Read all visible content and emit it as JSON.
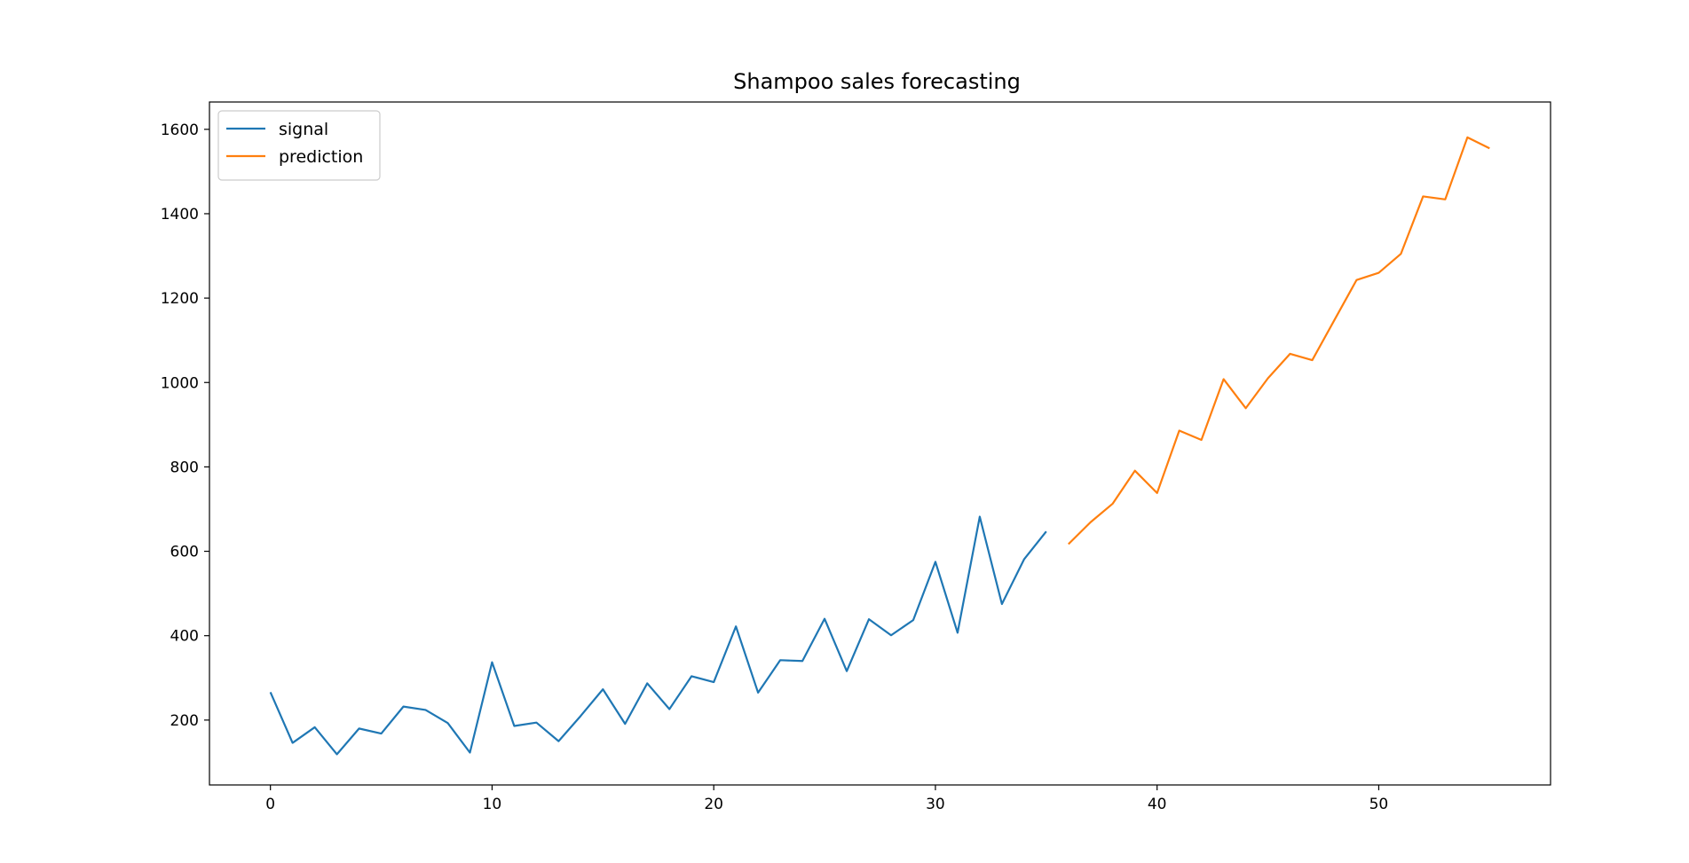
{
  "chart_data": {
    "type": "line",
    "title": "Shampoo sales forecasting",
    "xlabel": "",
    "ylabel": "",
    "xlim": [
      -2.75,
      57.75
    ],
    "ylim": [
      46.25,
      1664.75
    ],
    "xticks": [
      0,
      10,
      20,
      30,
      40,
      50
    ],
    "yticks": [
      200,
      400,
      600,
      800,
      1000,
      1200,
      1400,
      1600
    ],
    "grid": false,
    "legend_position": "top-left",
    "series": [
      {
        "name": "signal",
        "color": "#1f77b4",
        "x": [
          0,
          1,
          2,
          3,
          4,
          5,
          6,
          7,
          8,
          9,
          10,
          11,
          12,
          13,
          14,
          15,
          16,
          17,
          18,
          19,
          20,
          21,
          22,
          23,
          24,
          25,
          26,
          27,
          28,
          29,
          30,
          31,
          32,
          33,
          34,
          35
        ],
        "y": [
          266,
          146,
          183,
          119,
          180,
          168,
          232,
          224,
          193,
          123,
          337,
          186,
          194,
          150,
          210,
          273,
          191,
          287,
          226,
          304,
          290,
          422,
          265,
          342,
          340,
          440,
          316,
          439,
          401,
          437,
          575,
          407,
          682,
          475,
          581,
          647
        ]
      },
      {
        "name": "prediction",
        "color": "#ff7f0e",
        "x": [
          36,
          37,
          38,
          39,
          40,
          41,
          42,
          43,
          44,
          45,
          46,
          47,
          48,
          49,
          50,
          51,
          52,
          53,
          54,
          55
        ],
        "y": [
          617,
          669,
          713,
          791,
          738,
          886,
          864,
          1008,
          939,
          1010,
          1068,
          1053,
          1148,
          1243,
          1260,
          1305,
          1441,
          1434,
          1581,
          1555
        ]
      }
    ]
  }
}
